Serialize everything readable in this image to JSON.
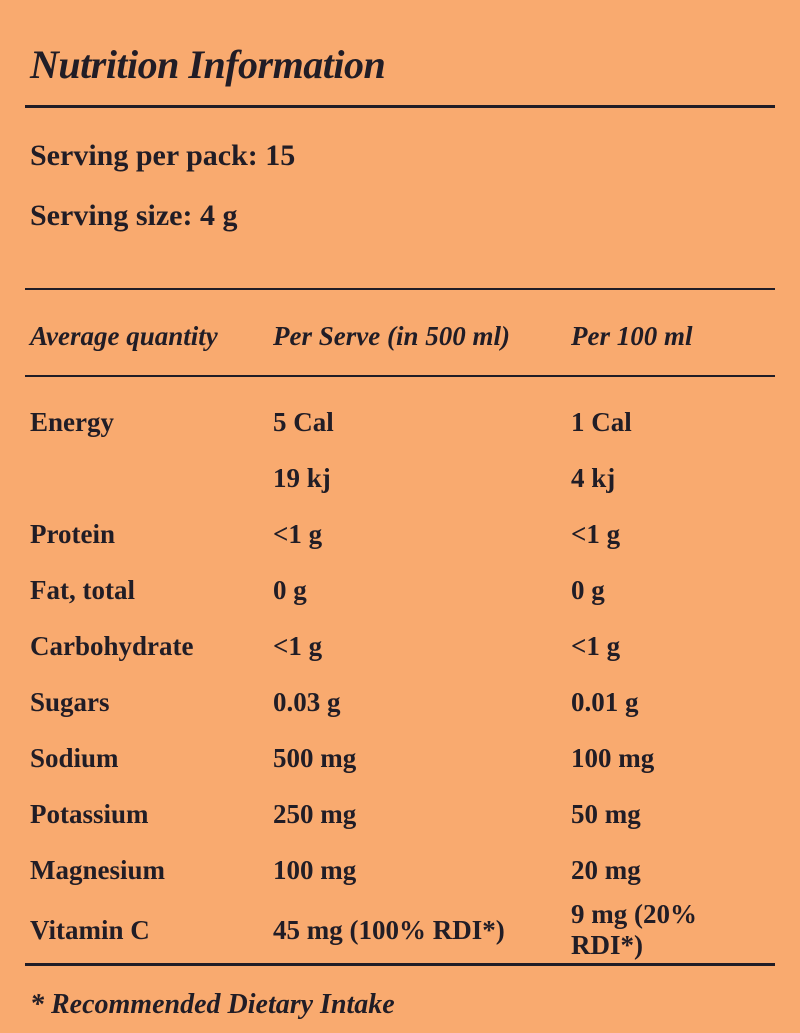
{
  "title": "Nutrition Information",
  "serving": {
    "per_pack": "Serving per pack: 15",
    "size": "Serving size: 4 g"
  },
  "table": {
    "headers": [
      "Average quantity",
      "Per Serve (in 500 ml)",
      "Per 100 ml"
    ],
    "rows": [
      {
        "name": "Energy",
        "per_serve": "5 Cal",
        "per_100ml": "1 Cal"
      },
      {
        "name": "",
        "per_serve": "19 kj",
        "per_100ml": "4 kj"
      },
      {
        "name": "Protein",
        "per_serve": "<1 g",
        "per_100ml": "<1 g"
      },
      {
        "name": "Fat, total",
        "per_serve": "0 g",
        "per_100ml": "0 g"
      },
      {
        "name": "Carbohydrate",
        "per_serve": "<1 g",
        "per_100ml": "<1 g"
      },
      {
        "name": "Sugars",
        "per_serve": "0.03 g",
        "per_100ml": "0.01 g"
      },
      {
        "name": "Sodium",
        "per_serve": "500 mg",
        "per_100ml": "100 mg"
      },
      {
        "name": "Potassium",
        "per_serve": "250 mg",
        "per_100ml": "50 mg"
      },
      {
        "name": "Magnesium",
        "per_serve": "100 mg",
        "per_100ml": "20 mg"
      },
      {
        "name": "Vitamin C",
        "per_serve": "45 mg (100% RDI*)",
        "per_100ml": "9 mg (20% RDI*)"
      }
    ]
  },
  "footnote": "* Recommended Dietary Intake",
  "colors": {
    "background": "#F9AA6F",
    "text": "#211D26",
    "rule": "#211D26"
  }
}
